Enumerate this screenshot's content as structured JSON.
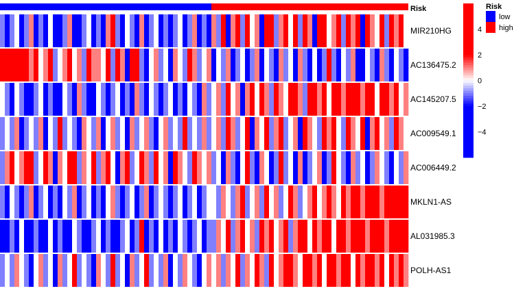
{
  "chart_data": {
    "type": "heatmap",
    "annotation": {
      "title": "Risk",
      "groups": [
        {
          "label": "low",
          "color": "#0000FF",
          "count": 44
        },
        {
          "label": "high",
          "color": "#FF0000",
          "count": 41
        }
      ]
    },
    "rows": [
      "MIR210HG",
      "AC136475.2",
      "AC145207.5",
      "AC009549.1",
      "AC006449.2",
      "MKLN1-AS",
      "AL031985.3",
      "POLH-AS1"
    ],
    "values": [
      [
        -1,
        -2,
        -1,
        0,
        -2,
        -1,
        1,
        -3,
        -1,
        -2,
        0,
        -2,
        -3,
        -1,
        1,
        -2,
        -3,
        -1,
        0,
        -2,
        -1,
        -2,
        1,
        2,
        -1,
        -2,
        0,
        -1,
        -2,
        1,
        -2,
        -1,
        0,
        -3,
        -1,
        -2,
        -1,
        0,
        -2,
        -1,
        1,
        -2,
        -1,
        -2,
        1,
        -1,
        2,
        -2,
        1,
        3,
        -1,
        2,
        0,
        1,
        -2,
        2,
        3,
        -1,
        1,
        2,
        0,
        3,
        -1,
        2,
        1,
        -2,
        3,
        2,
        0,
        1,
        3,
        -1,
        2,
        1,
        3,
        -2,
        2,
        1,
        0,
        3,
        -1,
        2,
        1,
        3,
        0
      ],
      [
        3,
        2,
        3,
        3,
        2,
        3,
        1,
        2,
        0,
        1,
        2,
        -1,
        0,
        1,
        2,
        0,
        1,
        -1,
        2,
        1,
        1,
        0,
        2,
        -1,
        3,
        1,
        -2,
        2,
        3,
        -1,
        -2,
        0,
        1,
        -1,
        0,
        -2,
        1,
        0,
        -1,
        2,
        1,
        -1,
        0,
        1,
        -2,
        0,
        -1,
        1,
        -2,
        -1,
        0,
        -3,
        -1,
        1,
        -2,
        0,
        -1,
        -3,
        1,
        -1,
        0,
        -2,
        1,
        -1,
        -2,
        0,
        -3,
        -1,
        2,
        -1,
        -2,
        0,
        -1,
        1,
        -2,
        -3,
        0,
        -1,
        -2,
        1,
        -1,
        -2,
        0,
        -1,
        -2
      ],
      [
        0,
        -1,
        -2,
        0,
        -1,
        -2,
        -3,
        -1,
        0,
        -2,
        -1,
        -3,
        -2,
        0,
        -1,
        -2,
        1,
        -1,
        -3,
        -2,
        0,
        -1,
        -2,
        -1,
        0,
        -3,
        -1,
        -2,
        1,
        -1,
        -2,
        0,
        -1,
        -3,
        -1,
        0,
        -2,
        -1,
        -2,
        0,
        -1,
        -2,
        1,
        -1,
        0,
        1,
        -1,
        2,
        0,
        1,
        -2,
        1,
        2,
        0,
        3,
        1,
        -1,
        2,
        1,
        0,
        2,
        3,
        1,
        -1,
        2,
        3,
        1,
        2,
        0,
        3,
        2,
        1,
        3,
        2,
        3,
        1,
        2,
        3,
        0,
        2,
        3,
        1,
        2,
        0,
        1
      ],
      [
        -1,
        0,
        -1,
        1,
        -2,
        -1,
        0,
        -1,
        1,
        -2,
        0,
        -1,
        2,
        -1,
        0,
        -1,
        -2,
        1,
        0,
        -1,
        1,
        -2,
        0,
        1,
        -1,
        0,
        -2,
        1,
        -1,
        0,
        1,
        -1,
        -2,
        0,
        1,
        -1,
        0,
        -1,
        2,
        -1,
        0,
        -1,
        1,
        -1,
        0,
        1,
        -1,
        2,
        1,
        -1,
        0,
        2,
        -2,
        1,
        0,
        3,
        -1,
        1,
        2,
        -1,
        0,
        1,
        -2,
        2,
        1,
        0,
        -1,
        2,
        1,
        3,
        0,
        -1,
        2,
        1,
        0,
        2,
        -2,
        1,
        3,
        0,
        1,
        -1,
        2,
        1,
        0
      ],
      [
        -1,
        1,
        2,
        0,
        1,
        3,
        2,
        -1,
        0,
        2,
        1,
        -2,
        1,
        0,
        2,
        3,
        -1,
        1,
        0,
        2,
        -1,
        1,
        2,
        0,
        -2,
        1,
        2,
        -1,
        0,
        3,
        1,
        -1,
        2,
        0,
        1,
        -2,
        2,
        1,
        0,
        -1,
        2,
        1,
        0,
        1,
        -1,
        0,
        -2,
        1,
        -1,
        -2,
        0,
        2,
        -1,
        -3,
        1,
        0,
        -2,
        -1,
        2,
        -1,
        0,
        -3,
        1,
        -2,
        -1,
        0,
        1,
        -2,
        -1,
        2,
        0,
        -1,
        -2,
        1,
        -1,
        0,
        -2,
        -1,
        1,
        0,
        -1,
        -2,
        0,
        -1,
        1
      ],
      [
        -1,
        -2,
        0,
        -1,
        -2,
        -1,
        1,
        -2,
        -1,
        0,
        -2,
        -1,
        -2,
        0,
        -1,
        1,
        -2,
        -1,
        0,
        -2,
        -1,
        -2,
        0,
        1,
        -1,
        -2,
        -1,
        0,
        -2,
        -1,
        1,
        -2,
        -1,
        0,
        -1,
        -2,
        -1,
        0,
        -2,
        -1,
        0,
        -2,
        -1,
        0,
        0,
        -1,
        1,
        0,
        -1,
        1,
        2,
        -1,
        0,
        1,
        -1,
        2,
        0,
        1,
        -1,
        0,
        2,
        1,
        -1,
        0,
        1,
        2,
        0,
        1,
        2,
        1,
        0,
        2,
        1,
        3,
        2,
        1,
        3,
        2,
        3,
        1,
        3,
        2,
        3,
        2,
        3
      ],
      [
        -2,
        -3,
        -1,
        -2,
        0,
        -3,
        -2,
        -1,
        -2,
        -3,
        0,
        -2,
        -1,
        -3,
        -2,
        0,
        -1,
        -2,
        -3,
        -1,
        0,
        -2,
        -1,
        -3,
        -2,
        -1,
        0,
        -2,
        -1,
        2,
        -2,
        -1,
        -3,
        0,
        -2,
        -1,
        -2,
        0,
        -1,
        -2,
        -1,
        0,
        -2,
        -1,
        -1,
        1,
        0,
        2,
        -1,
        1,
        2,
        0,
        1,
        -1,
        2,
        1,
        3,
        0,
        1,
        2,
        -1,
        1,
        2,
        3,
        0,
        2,
        1,
        3,
        2,
        0,
        2,
        3,
        1,
        2,
        3,
        2,
        1,
        3,
        2,
        3,
        1,
        2,
        3,
        2,
        3
      ],
      [
        -1,
        0,
        -1,
        1,
        0,
        -1,
        -2,
        0,
        1,
        -1,
        0,
        -2,
        1,
        -1,
        0,
        2,
        -1,
        0,
        -1,
        -2,
        1,
        0,
        -1,
        2,
        -1,
        0,
        -2,
        1,
        -1,
        0,
        2,
        -1,
        0,
        -1,
        1,
        -2,
        0,
        -1,
        1,
        0,
        -1,
        -2,
        0,
        1,
        0,
        1,
        -1,
        1,
        0,
        2,
        -1,
        1,
        0,
        2,
        1,
        -1,
        2,
        0,
        1,
        2,
        3,
        1,
        0,
        2,
        3,
        1,
        2,
        0,
        3,
        2,
        1,
        3,
        2,
        0,
        3,
        1,
        2,
        3,
        1,
        2,
        0,
        3,
        1,
        2,
        1
      ]
    ],
    "color_scale": {
      "low": "#0000FF",
      "mid": "#FFFFFF",
      "high": "#FF0000",
      "range": [
        -6,
        6
      ],
      "saturation": 2
    },
    "colorbar_ticks": [
      "4",
      "2",
      "0",
      "−2",
      "−4"
    ],
    "colorbar_tick_values": [
      4,
      2,
      0,
      -2,
      -4
    ]
  }
}
